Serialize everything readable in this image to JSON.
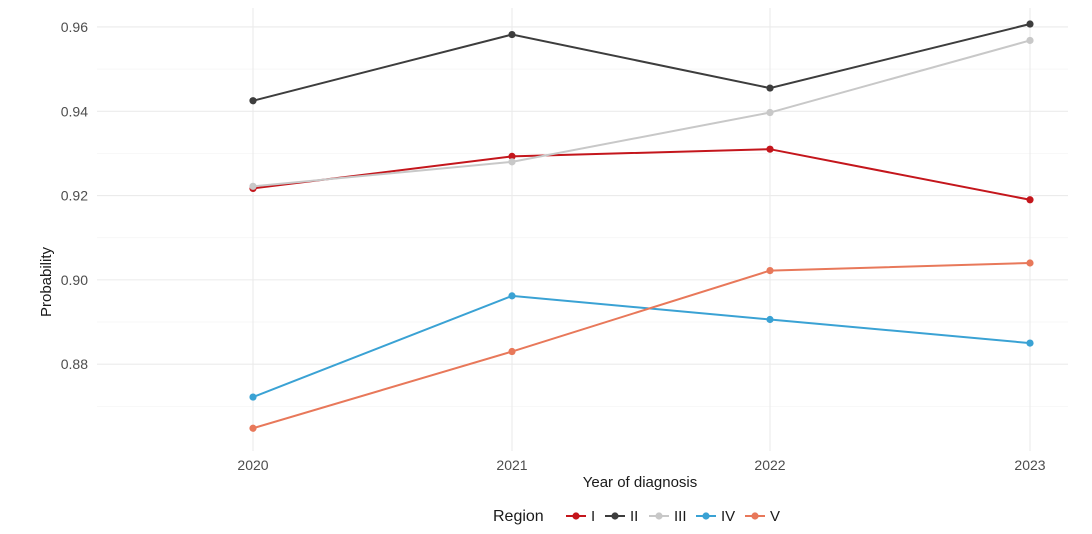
{
  "chart_data": {
    "type": "line",
    "xlabel": "Year of diagnosis",
    "ylabel": "Probability",
    "x": [
      "2020",
      "2021",
      "2022",
      "2023"
    ],
    "y_ticks": [
      "0.88",
      "0.90",
      "0.92",
      "0.94",
      "0.96"
    ],
    "ylim": [
      0.8594,
      0.9645
    ],
    "grid": true,
    "legend_title": "Region",
    "legend_position": "bottom",
    "series": [
      {
        "name": "I",
        "color": "#c4161c",
        "values": [
          0.9217,
          0.9293,
          0.931,
          0.919
        ]
      },
      {
        "name": "II",
        "color": "#3d3d3d",
        "values": [
          0.9425,
          0.9582,
          0.9455,
          0.9607
        ]
      },
      {
        "name": "III",
        "color": "#c8c8c8",
        "values": [
          0.9222,
          0.928,
          0.9397,
          0.9568
        ]
      },
      {
        "name": "IV",
        "color": "#3aa2d4",
        "values": [
          0.8722,
          0.8962,
          0.8906,
          0.885
        ]
      },
      {
        "name": "V",
        "color": "#e8785a",
        "values": [
          0.8648,
          0.883,
          0.9022,
          0.904
        ]
      }
    ]
  }
}
